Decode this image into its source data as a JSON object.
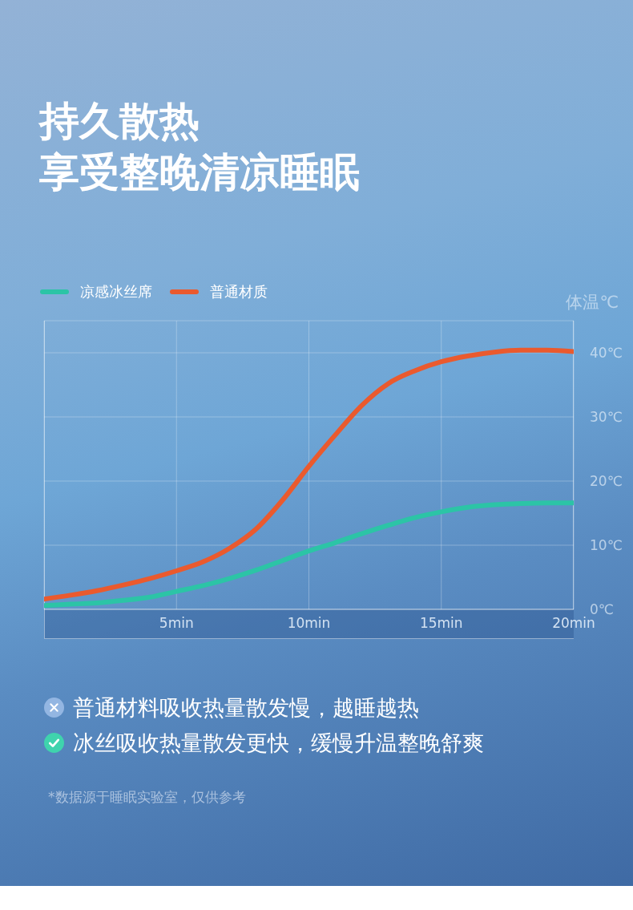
{
  "chart_data": {
    "type": "line",
    "title": "持久散热",
    "subtitle": "享受整晚清凉睡眠",
    "ylabel": "体温℃",
    "x": [
      0,
      1,
      2,
      3,
      4,
      5,
      6,
      7,
      8,
      9,
      10,
      11,
      12,
      13,
      14,
      15,
      16,
      17,
      18,
      19,
      20
    ],
    "series": [
      {
        "name": "凉感冰丝席",
        "color": "#2cc4a6",
        "values": [
          0.6,
          0.8,
          1.0,
          1.4,
          1.9,
          2.8,
          3.7,
          4.8,
          6.1,
          7.6,
          9.1,
          10.4,
          11.8,
          13.1,
          14.3,
          15.2,
          15.9,
          16.3,
          16.5,
          16.6,
          16.6
        ]
      },
      {
        "name": "普通材质",
        "color": "#ea5a2e",
        "values": [
          1.6,
          2.2,
          2.9,
          3.8,
          4.8,
          6.0,
          7.4,
          9.5,
          12.5,
          17,
          22.3,
          27.2,
          31.8,
          35.2,
          37.2,
          38.6,
          39.5,
          40.1,
          40.4,
          40.4,
          40.2
        ]
      }
    ],
    "xlim": [
      0,
      20
    ],
    "xticks": [
      {
        "value": 5,
        "label": "5min"
      },
      {
        "value": 10,
        "label": "10min"
      },
      {
        "value": 15,
        "label": "15min"
      },
      {
        "value": 20,
        "label": "20min"
      }
    ],
    "ylim": [
      0,
      45
    ],
    "yticks": [
      {
        "value": 0,
        "label": "0℃"
      },
      {
        "value": 10,
        "label": "10℃"
      },
      {
        "value": 20,
        "label": "20℃"
      },
      {
        "value": 30,
        "label": "30℃"
      },
      {
        "value": 40,
        "label": "40℃"
      }
    ],
    "grid": true,
    "legend": "top left",
    "marker": "none",
    "annotations": [
      "普通材料吸收热量散发慢，越睡越热",
      "冰丝吸收热量散发更快，缓慢升温整晚舒爽",
      "*数据源于睡眠实验室，仅供参考"
    ]
  }
}
